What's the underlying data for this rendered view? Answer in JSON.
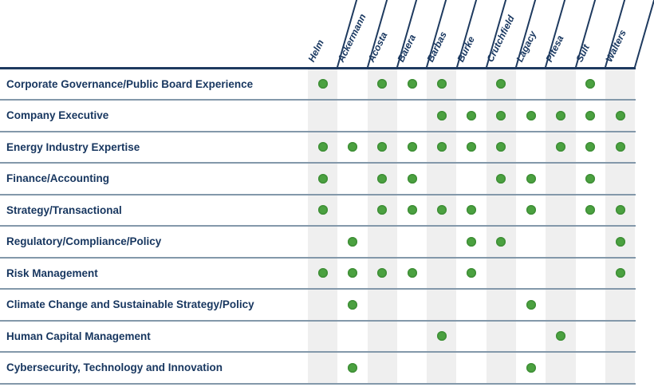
{
  "chart_data": {
    "type": "table",
    "description": "Board of directors skills matrix; a green dot marks that the director in the column has the skill in the row",
    "columns": [
      "Helm",
      "Ackermann",
      "Acosta",
      "Baiera",
      "Barbas",
      "Burke",
      "Crutchfield",
      "Lagacy",
      "Pitesa",
      "Sult",
      "Walters"
    ],
    "rows": [
      {
        "label": "Corporate Governance/Public Board Experience",
        "values": [
          1,
          0,
          1,
          1,
          1,
          0,
          1,
          0,
          0,
          1,
          0
        ]
      },
      {
        "label": "Company Executive",
        "values": [
          0,
          0,
          0,
          0,
          1,
          1,
          1,
          1,
          1,
          1,
          1
        ]
      },
      {
        "label": "Energy Industry Expertise",
        "values": [
          1,
          1,
          1,
          1,
          1,
          1,
          1,
          0,
          1,
          1,
          1
        ]
      },
      {
        "label": "Finance/Accounting",
        "values": [
          1,
          0,
          1,
          1,
          0,
          0,
          1,
          1,
          0,
          1,
          0
        ]
      },
      {
        "label": "Strategy/Transactional",
        "values": [
          1,
          0,
          1,
          1,
          1,
          1,
          0,
          1,
          0,
          1,
          1
        ]
      },
      {
        "label": "Regulatory/Compliance/Policy",
        "values": [
          0,
          1,
          0,
          0,
          0,
          1,
          1,
          0,
          0,
          0,
          1
        ]
      },
      {
        "label": "Risk Management",
        "values": [
          1,
          1,
          1,
          1,
          0,
          1,
          0,
          0,
          0,
          0,
          1
        ]
      },
      {
        "label": "Climate Change and Sustainable Strategy/Policy",
        "values": [
          0,
          1,
          0,
          0,
          0,
          0,
          0,
          1,
          0,
          0,
          0
        ]
      },
      {
        "label": "Human Capital Management",
        "values": [
          0,
          0,
          0,
          0,
          1,
          0,
          0,
          0,
          1,
          0,
          0
        ]
      },
      {
        "label": "Cybersecurity, Technology and Innovation",
        "values": [
          0,
          1,
          0,
          0,
          0,
          0,
          0,
          1,
          0,
          0,
          0
        ]
      }
    ],
    "marker": "green-dot",
    "layout_hints": {
      "stripes": "alternating light gray on odd columns",
      "header_names_rotated": true
    }
  },
  "colors": {
    "dot_green": "#4ba140",
    "dot_green_edge": "#3f8f37",
    "navy_text": "#17365f",
    "header_rule": "#1e3a5f",
    "row_separator": "#8398aa",
    "column_stripe": "#efefef"
  }
}
